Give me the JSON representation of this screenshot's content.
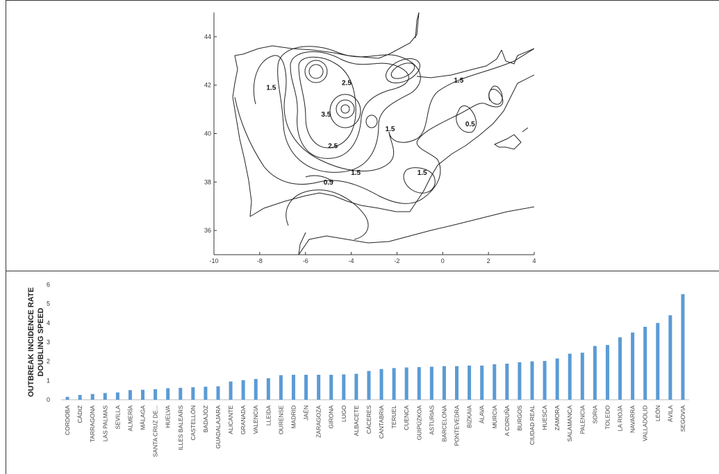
{
  "chart_data": [
    {
      "type": "contour",
      "xlim": [
        -10,
        4
      ],
      "ylim": [
        35,
        45
      ],
      "x_ticks": [
        "-10",
        "-8",
        "-6",
        "-4",
        "-2",
        "0",
        "2",
        "4"
      ],
      "y_ticks": [
        "36",
        "38",
        "40",
        "42",
        "44"
      ],
      "contour_labels": [
        {
          "text": "2.5",
          "x": -4.2,
          "y": 42.0
        },
        {
          "text": "1.5",
          "x": -7.5,
          "y": 41.8
        },
        {
          "text": "1.5",
          "x": 0.7,
          "y": 42.1
        },
        {
          "text": "3.5",
          "x": -5.1,
          "y": 40.7
        },
        {
          "text": "1.5",
          "x": -2.3,
          "y": 40.1
        },
        {
          "text": "0.5",
          "x": 1.2,
          "y": 40.3
        },
        {
          "text": "2.5",
          "x": -4.8,
          "y": 39.4
        },
        {
          "text": "1.5",
          "x": -3.8,
          "y": 38.3
        },
        {
          "text": "1.5",
          "x": -0.9,
          "y": 38.3
        },
        {
          "text": "0.5",
          "x": -5.0,
          "y": 37.9
        }
      ]
    },
    {
      "type": "bar",
      "ylabel": [
        "OUTBREAK INCIDENCE RATE",
        "DOUBLING SPEED"
      ],
      "ylim": [
        0,
        6
      ],
      "y_ticks": [
        "0",
        "1",
        "2",
        "3",
        "4",
        "5",
        "6"
      ],
      "color": "#5b9bd5",
      "categories": [
        "CORDOBA",
        "CÁDIZ",
        "TARRAGONA",
        "LAS PALMAS",
        "SEVILLA",
        "ALMERÍA",
        "MÁLAGA",
        "SANTA CRUZ DE...",
        "HUELVA",
        "ILLES BALEARS",
        "CASTELLÓN",
        "BADAJOZ",
        "GUADALAJARA",
        "ALICANTE",
        "GRANADA",
        "VALENCIA",
        "LLEIDA",
        "OURENSE",
        "MADRID",
        "JAÉN",
        "ZARAGOZA",
        "GIRONA",
        "LUGO",
        "ALBACETE",
        "CÁCERES",
        "CANTABRIA",
        "TERUEL",
        "CUENCA",
        "GUIPÚZKOA",
        "ASTURIAS",
        "BARCELONA",
        "PONTEVEDRA",
        "BIZKAIA",
        "ÁLAVA",
        "MURCIA",
        "A CORUÑA",
        "BURGOS",
        "CIUDAD REAL",
        "HUESCA",
        "ZAMORA",
        "SALAMANCA",
        "PALENCIA",
        "SORIA",
        "TOLEDO",
        "LA RIOJA",
        "NAVARRA",
        "VALLADOLID",
        "LEÓN",
        "ÁVILA",
        "SEGOVIA"
      ],
      "values": [
        0.15,
        0.25,
        0.3,
        0.35,
        0.38,
        0.5,
        0.52,
        0.55,
        0.6,
        0.62,
        0.65,
        0.68,
        0.7,
        0.95,
        1.02,
        1.08,
        1.12,
        1.28,
        1.3,
        1.3,
        1.3,
        1.3,
        1.32,
        1.35,
        1.5,
        1.6,
        1.65,
        1.68,
        1.7,
        1.72,
        1.75,
        1.75,
        1.78,
        1.78,
        1.85,
        1.88,
        1.95,
        2.0,
        2.02,
        2.15,
        2.4,
        2.45,
        2.8,
        2.85,
        3.25,
        3.5,
        3.8,
        4.0,
        4.4,
        5.5
      ]
    }
  ]
}
